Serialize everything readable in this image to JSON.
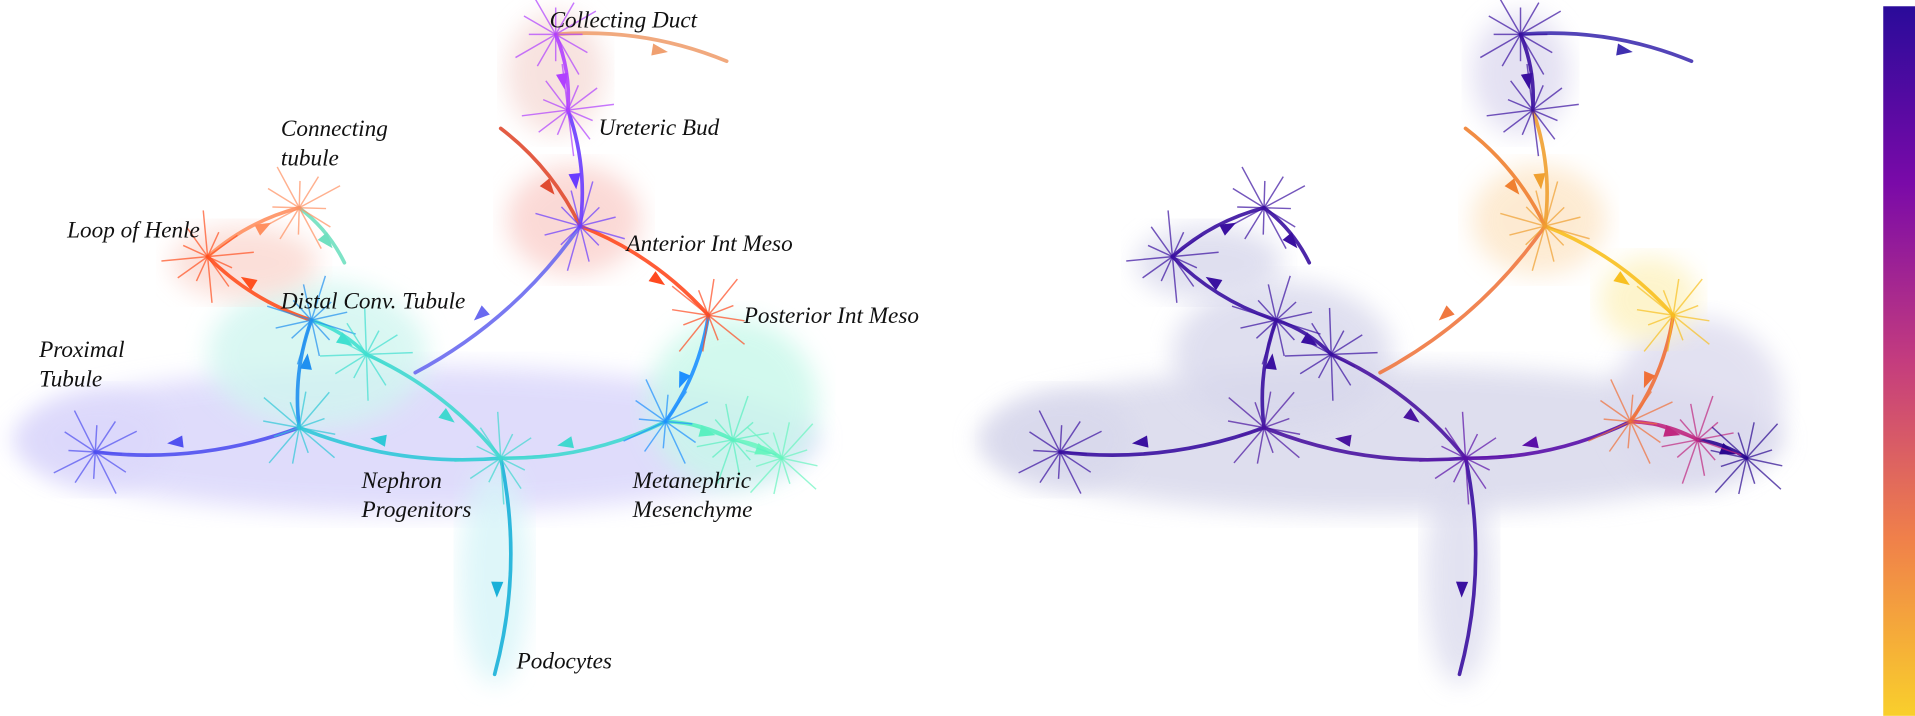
{
  "labels": [
    [
      "Collecting Duct"
    ],
    [
      "Ureteric Bud"
    ],
    [
      "Connecting",
      "tubule"
    ],
    [
      "Loop of Henle"
    ],
    [
      "Anterior Int Meso"
    ],
    [
      "Distal Conv. Tubule"
    ],
    [
      "Posterior Int Meso"
    ],
    [
      "Proximal",
      "Tubule"
    ],
    [
      "Nephron",
      "Progenitors"
    ],
    [
      "Metanephric",
      "Mesenchyme"
    ],
    [
      "Podocytes"
    ]
  ]
}
